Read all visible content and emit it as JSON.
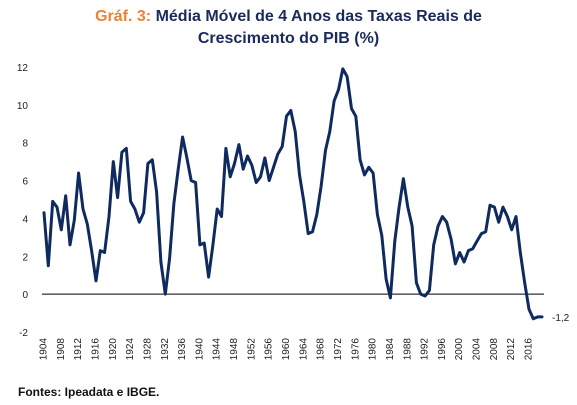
{
  "title": {
    "prefix": "Gráf. 3:",
    "line1": "Média Móvel de 4 Anos das Taxas Reais de",
    "line2": "Crescimento do PIB (%)"
  },
  "source": "Fontes: Ipeadata e IBGE.",
  "colors": {
    "line": "#0f2a5f",
    "title": "#1b2a5c",
    "prefix": "#e8833a"
  },
  "chart_data": {
    "type": "line",
    "title": "Média Móvel de 4 Anos das Taxas Reais de Crescimento do PIB (%)",
    "xlabel": "",
    "ylabel": "",
    "ylim": [
      -2,
      12
    ],
    "xlim": [
      1904,
      2019
    ],
    "yticks": [
      -2,
      0,
      2,
      4,
      6,
      8,
      10,
      12
    ],
    "xticks": [
      1904,
      1908,
      1912,
      1916,
      1920,
      1924,
      1928,
      1932,
      1936,
      1940,
      1944,
      1948,
      1952,
      1956,
      1960,
      1964,
      1968,
      1972,
      1976,
      1980,
      1984,
      1988,
      1992,
      1996,
      2000,
      2004,
      2008,
      2012,
      2016
    ],
    "grid": false,
    "end_label": "-1,2",
    "series": [
      {
        "name": "",
        "x": [
          1904,
          1905,
          1906,
          1907,
          1908,
          1909,
          1910,
          1911,
          1912,
          1913,
          1914,
          1915,
          1916,
          1917,
          1918,
          1919,
          1920,
          1921,
          1922,
          1923,
          1924,
          1925,
          1926,
          1927,
          1928,
          1929,
          1930,
          1931,
          1932,
          1933,
          1934,
          1935,
          1936,
          1937,
          1938,
          1939,
          1940,
          1941,
          1942,
          1943,
          1944,
          1945,
          1946,
          1947,
          1948,
          1949,
          1950,
          1951,
          1952,
          1953,
          1954,
          1955,
          1956,
          1957,
          1958,
          1959,
          1960,
          1961,
          1962,
          1963,
          1964,
          1965,
          1966,
          1967,
          1968,
          1969,
          1970,
          1971,
          1972,
          1973,
          1974,
          1975,
          1976,
          1977,
          1978,
          1979,
          1980,
          1981,
          1982,
          1983,
          1984,
          1985,
          1986,
          1987,
          1988,
          1989,
          1990,
          1991,
          1992,
          1993,
          1994,
          1995,
          1996,
          1997,
          1998,
          1999,
          2000,
          2001,
          2002,
          2003,
          2004,
          2005,
          2006,
          2007,
          2008,
          2009,
          2010,
          2011,
          2012,
          2013,
          2014,
          2015,
          2016,
          2017,
          2018,
          2019
        ],
        "values": [
          4.3,
          1.5,
          4.9,
          4.6,
          3.4,
          5.2,
          2.6,
          3.9,
          6.4,
          4.5,
          3.7,
          2.3,
          0.7,
          2.3,
          2.2,
          4.1,
          7.0,
          5.1,
          7.5,
          7.7,
          4.9,
          4.5,
          3.8,
          4.3,
          6.9,
          7.1,
          5.4,
          1.7,
          0.0,
          1.9,
          4.8,
          6.6,
          8.3,
          7.2,
          6.0,
          5.9,
          2.6,
          2.7,
          0.9,
          2.6,
          4.5,
          4.1,
          7.7,
          6.2,
          6.9,
          7.9,
          6.6,
          7.3,
          6.8,
          5.9,
          6.2,
          7.2,
          6.0,
          6.7,
          7.4,
          7.8,
          9.4,
          9.7,
          8.6,
          6.3,
          4.9,
          3.2,
          3.3,
          4.2,
          5.7,
          7.6,
          8.6,
          10.2,
          10.8,
          11.9,
          11.5,
          9.8,
          9.4,
          7.1,
          6.3,
          6.7,
          6.4,
          4.2,
          3.1,
          0.8,
          -0.2,
          2.8,
          4.6,
          6.1,
          4.6,
          3.6,
          0.6,
          0.0,
          -0.1,
          0.2,
          2.6,
          3.6,
          4.1,
          3.8,
          2.9,
          1.6,
          2.2,
          1.7,
          2.3,
          2.4,
          2.8,
          3.2,
          3.3,
          4.7,
          4.6,
          3.8,
          4.6,
          4.1,
          3.4,
          4.1,
          2.2,
          0.6,
          -0.8,
          -1.3,
          -1.2,
          -1.2
        ]
      }
    ]
  }
}
